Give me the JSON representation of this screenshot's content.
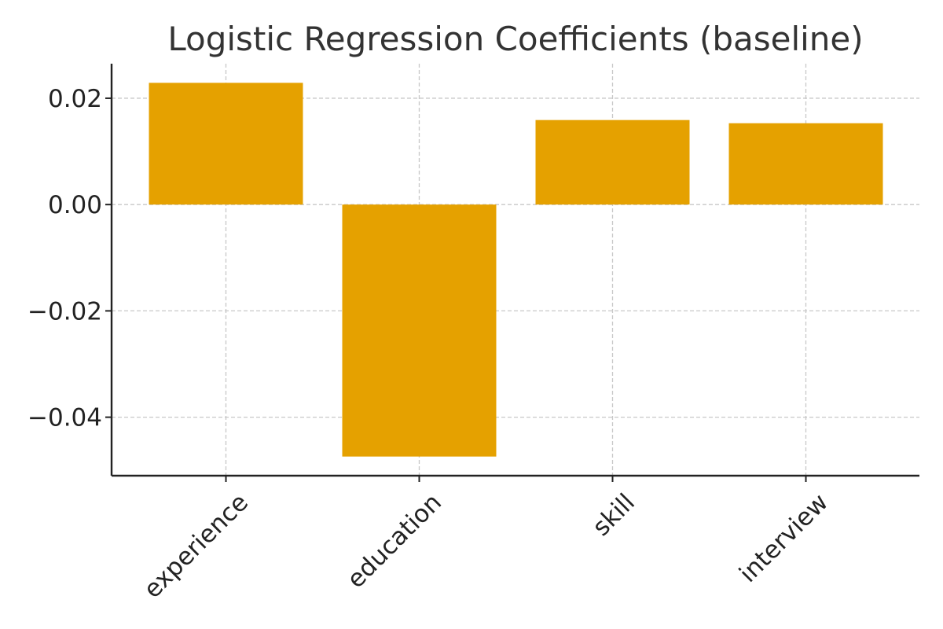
{
  "chart_data": {
    "type": "bar",
    "title": "Logistic Regression Coefficients (baseline)",
    "xlabel": "",
    "ylabel": "",
    "categories": [
      "experience",
      "education",
      "skill",
      "interview"
    ],
    "values": [
      0.0229,
      -0.0474,
      0.0159,
      0.0153
    ],
    "ylim": [
      -0.051,
      0.0265
    ],
    "yticks": [
      0.02,
      0.0,
      -0.02,
      -0.04
    ],
    "ytick_labels": [
      "0.02",
      "0.00",
      "−0.02",
      "−0.04"
    ],
    "grid": true,
    "legend": "none",
    "bar_color": "#E5A100"
  }
}
